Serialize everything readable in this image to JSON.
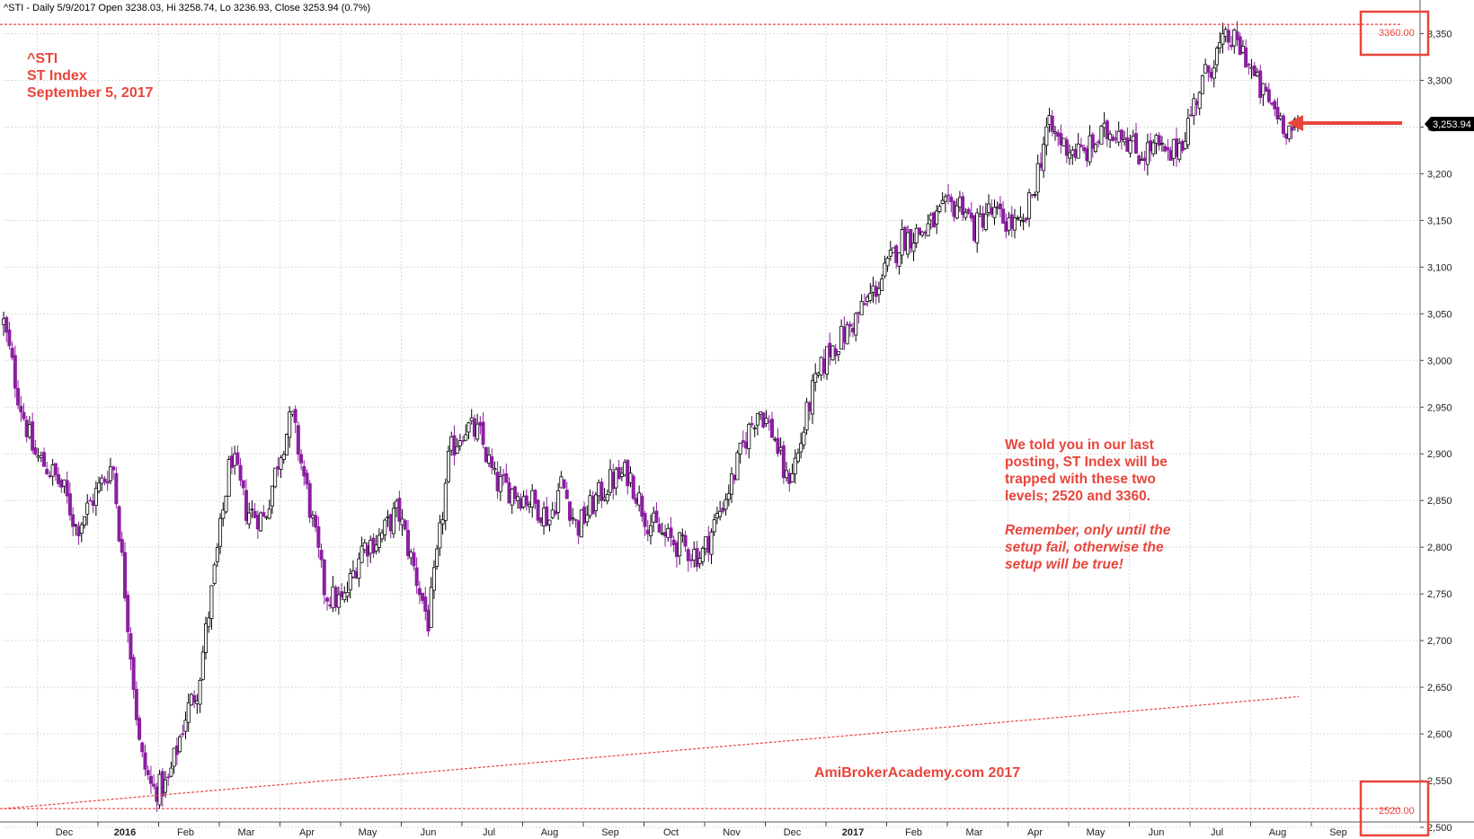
{
  "header": "^STI - Daily 5/9/2017 Open 3238.03, Hi 3258.74, Lo 3236.93, Close 3253.94 (0.7%)",
  "symbol_lines": [
    "^STI",
    "ST Index",
    "September 5, 2017"
  ],
  "note_lines": [
    "We told you in our last",
    "posting, ST Index will be",
    "trapped with these two",
    "levels; 2520 and 3360."
  ],
  "note_italic_lines": [
    "Remember, only until the",
    "setup fail, otherwise the",
    "setup will be true!"
  ],
  "site_label": "AmiBrokerAcademy.com 2017",
  "level_high_label": "3360.00",
  "level_low_label": "2520.00",
  "last_price_label": "3,253.94",
  "colors": {
    "down_candle": "#8b1fa0",
    "up_candle": "#ffffff",
    "annotation": "#e8453c",
    "grid": "#d9d9d9"
  },
  "chart_data": {
    "type": "candlestick",
    "title": "^STI",
    "subtitle": "ST Index",
    "ylim": [
      2495,
      3370
    ],
    "y_ticks": [
      "2,500",
      "2,550",
      "2,600",
      "2,650",
      "2,700",
      "2,750",
      "2,800",
      "2,850",
      "2,900",
      "2,950",
      "3,000",
      "3,050",
      "3,100",
      "3,150",
      "3,200",
      "3,250",
      "3,300",
      "3,350"
    ],
    "x_labels": [
      "Dec",
      "2016",
      "Feb",
      "Mar",
      "Apr",
      "May",
      "Jun",
      "Jul",
      "Aug",
      "Sep",
      "Oct",
      "Nov",
      "Dec",
      "2017",
      "Feb",
      "Mar",
      "Apr",
      "May",
      "Jun",
      "Jul",
      "Aug",
      "Sep"
    ],
    "x_label_month_index": [
      1,
      2,
      3,
      4,
      5,
      6,
      7,
      8,
      9,
      10,
      11,
      12,
      13,
      14,
      15,
      16,
      17,
      18,
      19,
      20,
      21,
      22
    ],
    "horizontal_levels": [
      3360,
      2520
    ],
    "trendline": [
      [
        0,
        2520
      ],
      [
        21.35,
        2640
      ]
    ],
    "path": [
      [
        0,
        3040
      ],
      [
        0.25,
        2960
      ],
      [
        0.5,
        2900
      ],
      [
        0.8,
        2880
      ],
      [
        1.0,
        2860
      ],
      [
        1.2,
        2820
      ],
      [
        1.5,
        2855
      ],
      [
        1.8,
        2890
      ],
      [
        2.05,
        2720
      ],
      [
        2.25,
        2580
      ],
      [
        2.45,
        2540
      ],
      [
        2.7,
        2545
      ],
      [
        3.0,
        2620
      ],
      [
        3.2,
        2650
      ],
      [
        3.45,
        2760
      ],
      [
        3.75,
        2900
      ],
      [
        4.0,
        2840
      ],
      [
        4.3,
        2830
      ],
      [
        4.55,
        2900
      ],
      [
        4.75,
        2940
      ],
      [
        5.0,
        2860
      ],
      [
        5.3,
        2750
      ],
      [
        5.6,
        2740
      ],
      [
        5.9,
        2800
      ],
      [
        6.2,
        2810
      ],
      [
        6.5,
        2840
      ],
      [
        6.75,
        2780
      ],
      [
        7.0,
        2720
      ],
      [
        7.15,
        2790
      ],
      [
        7.35,
        2900
      ],
      [
        7.6,
        2930
      ],
      [
        7.85,
        2920
      ],
      [
        8.1,
        2870
      ],
      [
        8.4,
        2860
      ],
      [
        8.7,
        2850
      ],
      [
        9.0,
        2830
      ],
      [
        9.2,
        2870
      ],
      [
        9.45,
        2820
      ],
      [
        9.75,
        2850
      ],
      [
        10.0,
        2870
      ],
      [
        10.3,
        2880
      ],
      [
        10.6,
        2830
      ],
      [
        10.9,
        2810
      ],
      [
        11.2,
        2800
      ],
      [
        11.5,
        2790
      ],
      [
        11.75,
        2830
      ],
      [
        12.0,
        2870
      ],
      [
        12.25,
        2920
      ],
      [
        12.45,
        2950
      ],
      [
        12.7,
        2920
      ],
      [
        12.9,
        2870
      ],
      [
        13.1,
        2900
      ],
      [
        13.3,
        2960
      ],
      [
        13.6,
        3010
      ],
      [
        13.9,
        3030
      ],
      [
        14.2,
        3060
      ],
      [
        14.5,
        3090
      ],
      [
        14.8,
        3130
      ],
      [
        15.2,
        3140
      ],
      [
        15.5,
        3160
      ],
      [
        15.8,
        3170
      ],
      [
        16.0,
        3140
      ],
      [
        16.2,
        3160
      ],
      [
        16.5,
        3150
      ],
      [
        16.8,
        3140
      ],
      [
        17.0,
        3190
      ],
      [
        17.2,
        3250
      ],
      [
        17.5,
        3230
      ],
      [
        17.8,
        3220
      ],
      [
        18.1,
        3240
      ],
      [
        18.4,
        3250
      ],
      [
        18.7,
        3220
      ],
      [
        19.0,
        3230
      ],
      [
        19.2,
        3215
      ],
      [
        19.45,
        3240
      ],
      [
        19.7,
        3290
      ],
      [
        20.0,
        3330
      ],
      [
        20.2,
        3345
      ],
      [
        20.45,
        3330
      ],
      [
        20.7,
        3290
      ],
      [
        20.95,
        3270
      ],
      [
        21.15,
        3250
      ],
      [
        21.3,
        3245
      ],
      [
        21.35,
        3254
      ]
    ]
  }
}
